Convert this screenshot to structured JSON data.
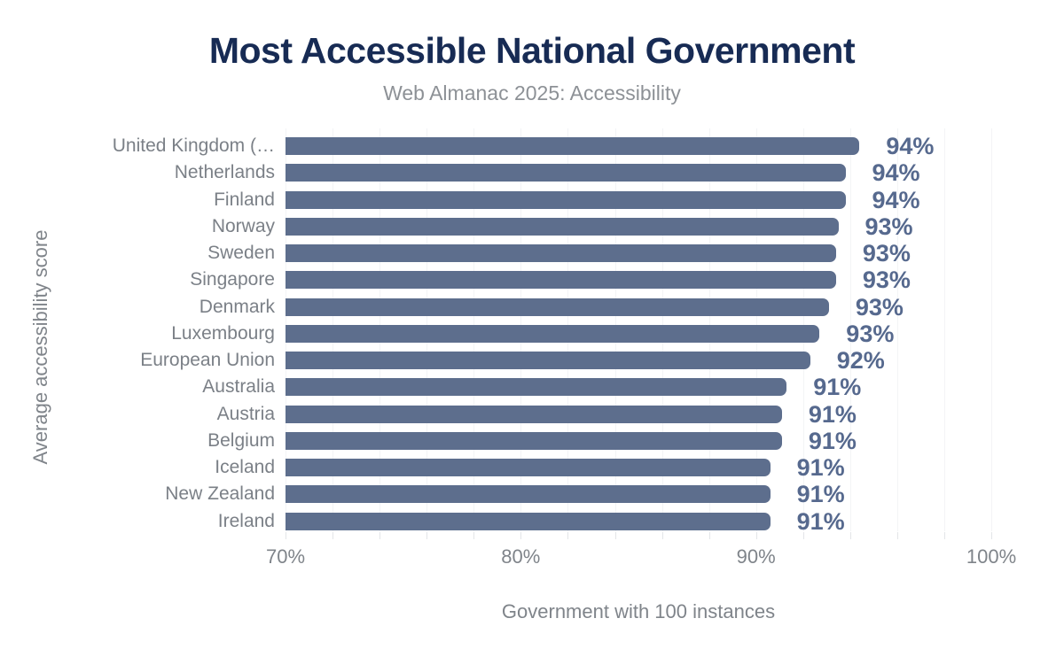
{
  "colors": {
    "background": "#ffffff",
    "title": "#172b54",
    "subtitle": "#8d9196",
    "bar": "#5d6e8d",
    "value_label": "#56698e",
    "category_label": "#7b8087",
    "axis_text": "#7f848a",
    "gridline": "#f3f4f6",
    "tick": "#e3e5e8"
  },
  "chart_data": {
    "type": "bar",
    "orientation": "horizontal",
    "title": "Most Accessible National Government",
    "subtitle": "Web Almanac 2025: Accessibility",
    "xlabel": "Government with 100 instances",
    "ylabel": "Average accessibility score",
    "xlim": [
      70,
      100
    ],
    "grid": true,
    "gridline_step_percent": 2,
    "legend": "none",
    "x_ticks": [
      {
        "value": 70,
        "label": "70%"
      },
      {
        "value": 80,
        "label": "80%"
      },
      {
        "value": 90,
        "label": "90%"
      },
      {
        "value": 100,
        "label": "100%"
      }
    ],
    "categories": [
      "United Kingdom (…",
      "Netherlands",
      "Finland",
      "Norway",
      "Sweden",
      "Singapore",
      "Denmark",
      "Luxembourg",
      "European Union",
      "Australia",
      "Austria",
      "Belgium",
      "Iceland",
      "New Zealand",
      "Ireland"
    ],
    "values": [
      94.4,
      93.8,
      93.8,
      93.5,
      93.4,
      93.4,
      93.1,
      92.7,
      92.3,
      91.3,
      91.1,
      91.1,
      90.6,
      90.6,
      90.6
    ],
    "value_labels": [
      "94%",
      "94%",
      "94%",
      "93%",
      "93%",
      "93%",
      "93%",
      "93%",
      "92%",
      "91%",
      "91%",
      "91%",
      "91%",
      "91%",
      "91%"
    ]
  }
}
